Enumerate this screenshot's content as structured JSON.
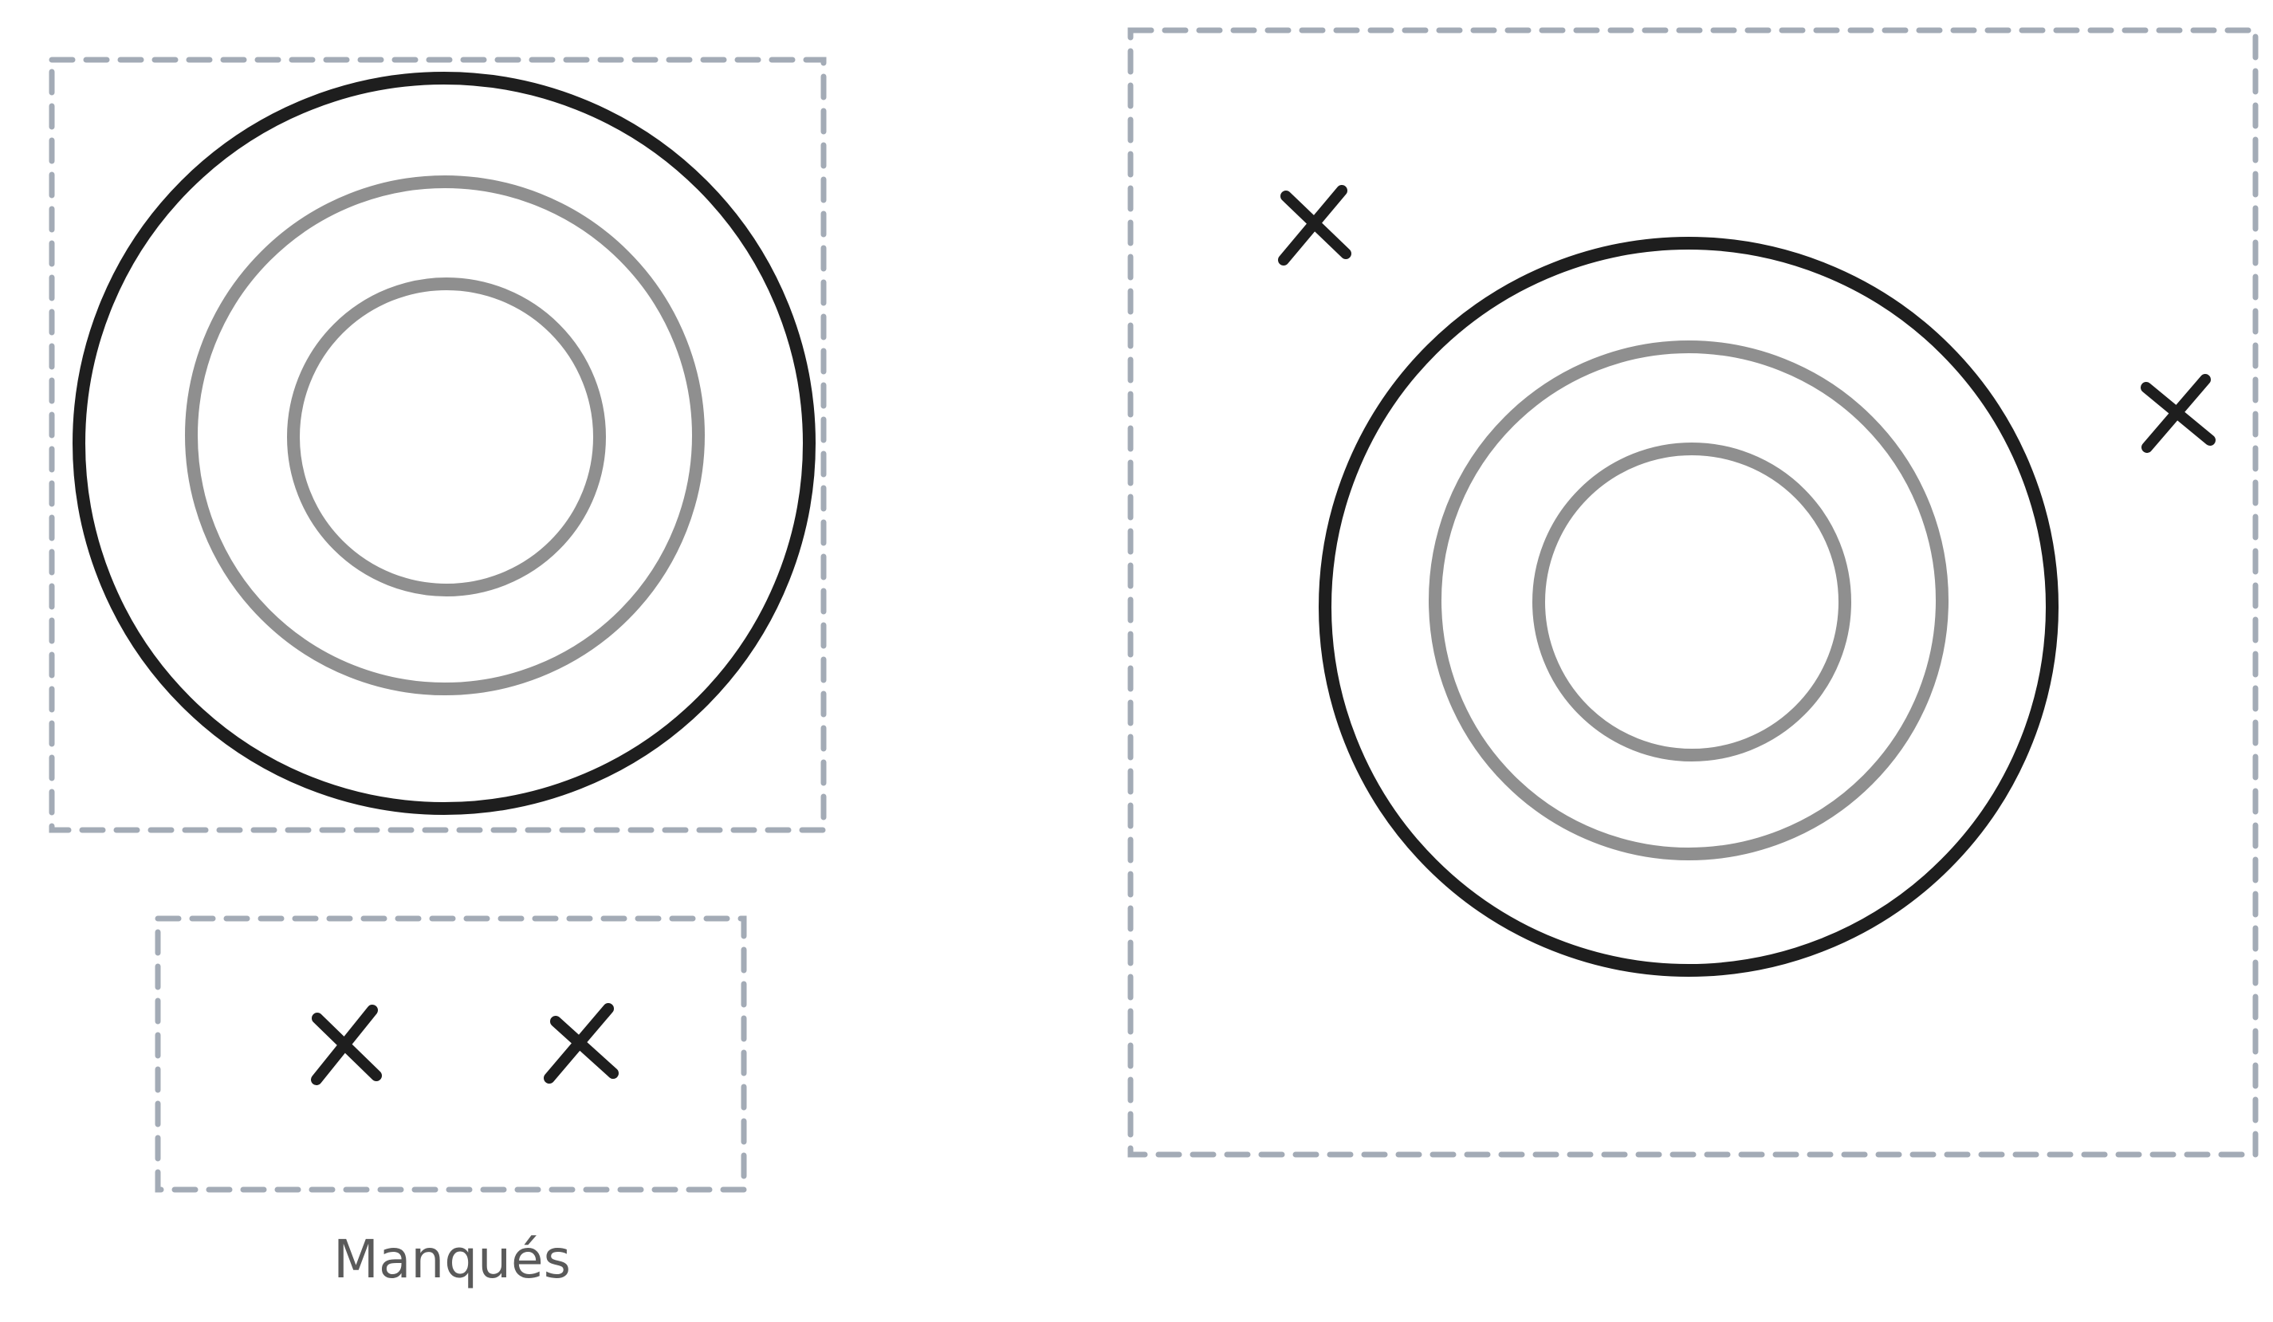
{
  "caption": "Manqués",
  "colors": {
    "outline": "#1e1e1e",
    "inner_rings": "#8f8f8f",
    "dashed_frame": "#a3abb6",
    "caption_text": "#5a5a5a"
  },
  "icons": {
    "target": "concentric-rings",
    "miss": "x-mark"
  }
}
